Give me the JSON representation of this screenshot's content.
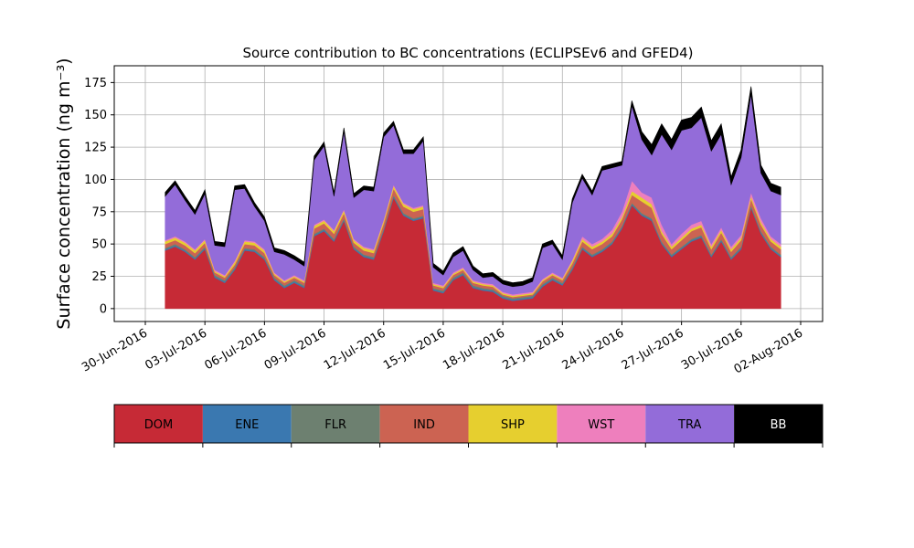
{
  "chart_data": {
    "type": "area",
    "stacked": true,
    "title": "Source contribution to BC concentrations (ECLIPSEv6 and GFED4)",
    "ylabel": "Surface concentration (ng m⁻³)",
    "xlabel": "",
    "ylim": [
      -10,
      188
    ],
    "xlim": [
      "2016-06-30",
      "2016-08-02"
    ],
    "grid": true,
    "y_ticks": [
      0,
      25,
      50,
      75,
      100,
      125,
      150,
      175
    ],
    "x_ticks": [
      "30-Jun-2016",
      "03-Jul-2016",
      "06-Jul-2016",
      "09-Jul-2016",
      "12-Jul-2016",
      "15-Jul-2016",
      "18-Jul-2016",
      "21-Jul-2016",
      "24-Jul-2016",
      "27-Jul-2016",
      "30-Jul-2016",
      "02-Aug-2016"
    ],
    "x_tick_dates": [
      "2016-06-30",
      "2016-07-03",
      "2016-07-06",
      "2016-07-09",
      "2016-07-12",
      "2016-07-15",
      "2016-07-18",
      "2016-07-21",
      "2016-07-24",
      "2016-07-27",
      "2016-07-30",
      "2016-08-02"
    ],
    "x": [
      "2016-07-01",
      "2016-07-01 12:00",
      "2016-07-02",
      "2016-07-02 12:00",
      "2016-07-03",
      "2016-07-03 12:00",
      "2016-07-04",
      "2016-07-04 12:00",
      "2016-07-05",
      "2016-07-05 12:00",
      "2016-07-06",
      "2016-07-06 12:00",
      "2016-07-07",
      "2016-07-07 12:00",
      "2016-07-08",
      "2016-07-08 12:00",
      "2016-07-09",
      "2016-07-09 12:00",
      "2016-07-10",
      "2016-07-10 12:00",
      "2016-07-11",
      "2016-07-11 12:00",
      "2016-07-12",
      "2016-07-12 12:00",
      "2016-07-13",
      "2016-07-13 12:00",
      "2016-07-14",
      "2016-07-14 12:00",
      "2016-07-15",
      "2016-07-15 12:00",
      "2016-07-16",
      "2016-07-16 12:00",
      "2016-07-17",
      "2016-07-17 12:00",
      "2016-07-18",
      "2016-07-18 12:00",
      "2016-07-19",
      "2016-07-19 12:00",
      "2016-07-20",
      "2016-07-20 12:00",
      "2016-07-21",
      "2016-07-21 12:00",
      "2016-07-22",
      "2016-07-22 12:00",
      "2016-07-23",
      "2016-07-23 12:00",
      "2016-07-24",
      "2016-07-24 12:00",
      "2016-07-25",
      "2016-07-25 12:00",
      "2016-07-26",
      "2016-07-26 12:00",
      "2016-07-27",
      "2016-07-27 12:00",
      "2016-07-28",
      "2016-07-28 12:00",
      "2016-07-29",
      "2016-07-29 12:00",
      "2016-07-30",
      "2016-07-30 12:00",
      "2016-07-31",
      "2016-07-31 12:00",
      "2016-08-01"
    ],
    "series": [
      {
        "name": "DOM",
        "color": "#c62a36",
        "values": [
          45,
          48,
          44,
          38,
          46,
          24,
          20,
          30,
          45,
          44,
          38,
          22,
          16,
          20,
          16,
          56,
          60,
          52,
          68,
          46,
          40,
          38,
          60,
          86,
          72,
          68,
          70,
          14,
          12,
          22,
          26,
          16,
          14,
          13,
          8,
          6,
          7,
          8,
          17,
          22,
          18,
          30,
          46,
          40,
          44,
          50,
          62,
          80,
          72,
          68,
          50,
          40,
          46,
          52,
          55,
          40,
          52,
          38,
          46,
          78,
          58,
          46,
          40
        ]
      },
      {
        "name": "ENE",
        "color": "#3a78b0",
        "values": [
          1,
          1,
          1,
          1,
          1,
          1,
          1,
          1,
          1,
          1,
          1,
          1,
          1,
          1,
          1,
          1,
          1,
          1,
          1,
          1,
          1,
          1,
          1,
          1,
          1,
          1,
          1,
          1,
          1,
          1,
          1,
          1,
          1,
          1,
          1,
          1,
          1,
          1,
          1,
          1,
          1,
          1,
          1,
          1,
          1,
          1,
          1,
          1,
          1,
          1,
          1,
          1,
          1,
          1,
          1,
          1,
          1,
          1,
          1,
          1,
          1,
          1,
          1
        ]
      },
      {
        "name": "FLR",
        "color": "#6d8070",
        "values": [
          1,
          1,
          1,
          1,
          1,
          1,
          1,
          1,
          1,
          1,
          1,
          1,
          1,
          1,
          1,
          1,
          1,
          1,
          1,
          1,
          1,
          1,
          1,
          1,
          1,
          1,
          1,
          1,
          1,
          1,
          1,
          1,
          1,
          1,
          1,
          1,
          1,
          1,
          1,
          1,
          1,
          1,
          1,
          1,
          1,
          1,
          1,
          1,
          1,
          1,
          1,
          1,
          1,
          1,
          1,
          1,
          1,
          1,
          1,
          1,
          1,
          1,
          1
        ]
      },
      {
        "name": "IND",
        "color": "#cc6352",
        "values": [
          3,
          3,
          3,
          3,
          3,
          2,
          2,
          2,
          3,
          3,
          3,
          2,
          2,
          2,
          2,
          4,
          4,
          4,
          4,
          3,
          3,
          3,
          4,
          5,
          5,
          5,
          5,
          2,
          2,
          2,
          2,
          2,
          2,
          2,
          1,
          1,
          1,
          1,
          2,
          2,
          2,
          3,
          4,
          4,
          4,
          4,
          5,
          6,
          9,
          8,
          6,
          4,
          5,
          6,
          6,
          4,
          5,
          4,
          5,
          5,
          5,
          4,
          4
        ]
      },
      {
        "name": "SHP",
        "color": "#e6cf2f",
        "values": [
          2,
          2,
          2,
          2,
          2,
          1,
          1,
          2,
          2,
          2,
          2,
          1,
          1,
          1,
          1,
          2,
          2,
          2,
          2,
          2,
          2,
          2,
          2,
          2,
          2,
          2,
          2,
          1,
          1,
          1,
          1,
          1,
          1,
          1,
          1,
          1,
          1,
          1,
          1,
          1,
          1,
          2,
          2,
          2,
          2,
          2,
          2,
          3,
          3,
          3,
          2,
          2,
          2,
          2,
          2,
          2,
          2,
          2,
          2,
          2,
          2,
          2,
          2
        ]
      },
      {
        "name": "WST",
        "color": "#ee7fbd",
        "values": [
          1,
          1,
          1,
          1,
          1,
          1,
          1,
          1,
          1,
          1,
          1,
          1,
          1,
          1,
          1,
          1,
          1,
          1,
          1,
          1,
          1,
          1,
          1,
          1,
          1,
          1,
          1,
          1,
          1,
          1,
          1,
          1,
          1,
          1,
          1,
          1,
          1,
          1,
          1,
          1,
          1,
          1,
          2,
          2,
          2,
          3,
          4,
          8,
          4,
          5,
          5,
          2,
          3,
          3,
          3,
          2,
          2,
          2,
          2,
          3,
          3,
          2,
          2
        ]
      },
      {
        "name": "TRA",
        "color": "#936cd9",
        "values": [
          34,
          40,
          32,
          27,
          35,
          19,
          22,
          55,
          40,
          27,
          22,
          16,
          20,
          12,
          11,
          50,
          57,
          26,
          60,
          32,
          44,
          45,
          64,
          46,
          38,
          42,
          50,
          12,
          8,
          12,
          13,
          8,
          4,
          6,
          6,
          6,
          6,
          8,
          24,
          22,
          14,
          44,
          45,
          38,
          53,
          48,
          36,
          58,
          41,
          33,
          70,
          73,
          80,
          75,
          80,
          72,
          72,
          48,
          60,
          76,
          35,
          35,
          38
        ]
      },
      {
        "name": "BB",
        "color": "#000000",
        "values": [
          3,
          3,
          3,
          3,
          3,
          3,
          3,
          3,
          3,
          3,
          3,
          3,
          3,
          3,
          3,
          3,
          3,
          3,
          3,
          3,
          3,
          3,
          3,
          3,
          3,
          3,
          3,
          3,
          3,
          3,
          3,
          3,
          3,
          3,
          3,
          3,
          3,
          3,
          3,
          3,
          3,
          3,
          3,
          3,
          3,
          3,
          3,
          4,
          6,
          8,
          8,
          8,
          8,
          8,
          8,
          8,
          8,
          6,
          6,
          6,
          6,
          6,
          6
        ]
      }
    ],
    "colorbar_labels": [
      "DOM",
      "ENE",
      "FLR",
      "IND",
      "SHP",
      "WST",
      "TRA",
      "BB"
    ]
  }
}
